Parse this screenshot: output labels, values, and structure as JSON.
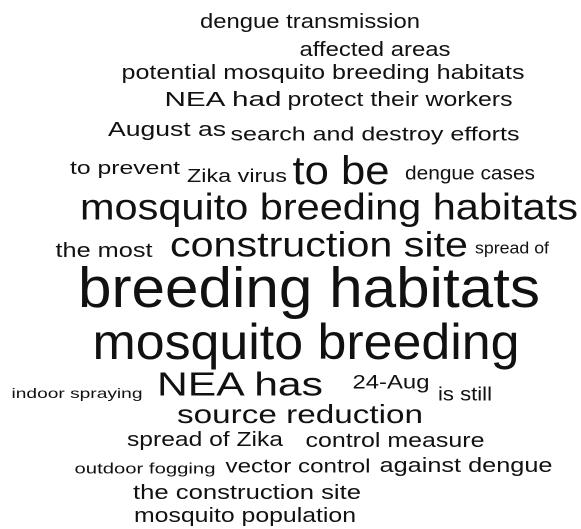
{
  "words": [
    "dengue transmission",
    "affected areas",
    "potential mosquito breeding habitats",
    "NEA had",
    "protect their workers",
    "August as",
    "search and destroy efforts",
    "to prevent",
    "Zika virus",
    "to be",
    "dengue cases",
    "mosquito breeding habitats",
    "the most",
    "construction site",
    "spread of",
    "breeding habitats",
    "mosquito breeding",
    "indoor spraying",
    "NEA has",
    "24-Aug",
    "is still",
    "source reduction",
    "spread of Zika",
    "control measure",
    "outdoor fogging",
    "vector control",
    "against dengue",
    "the construction site",
    "mosquito population"
  ]
}
